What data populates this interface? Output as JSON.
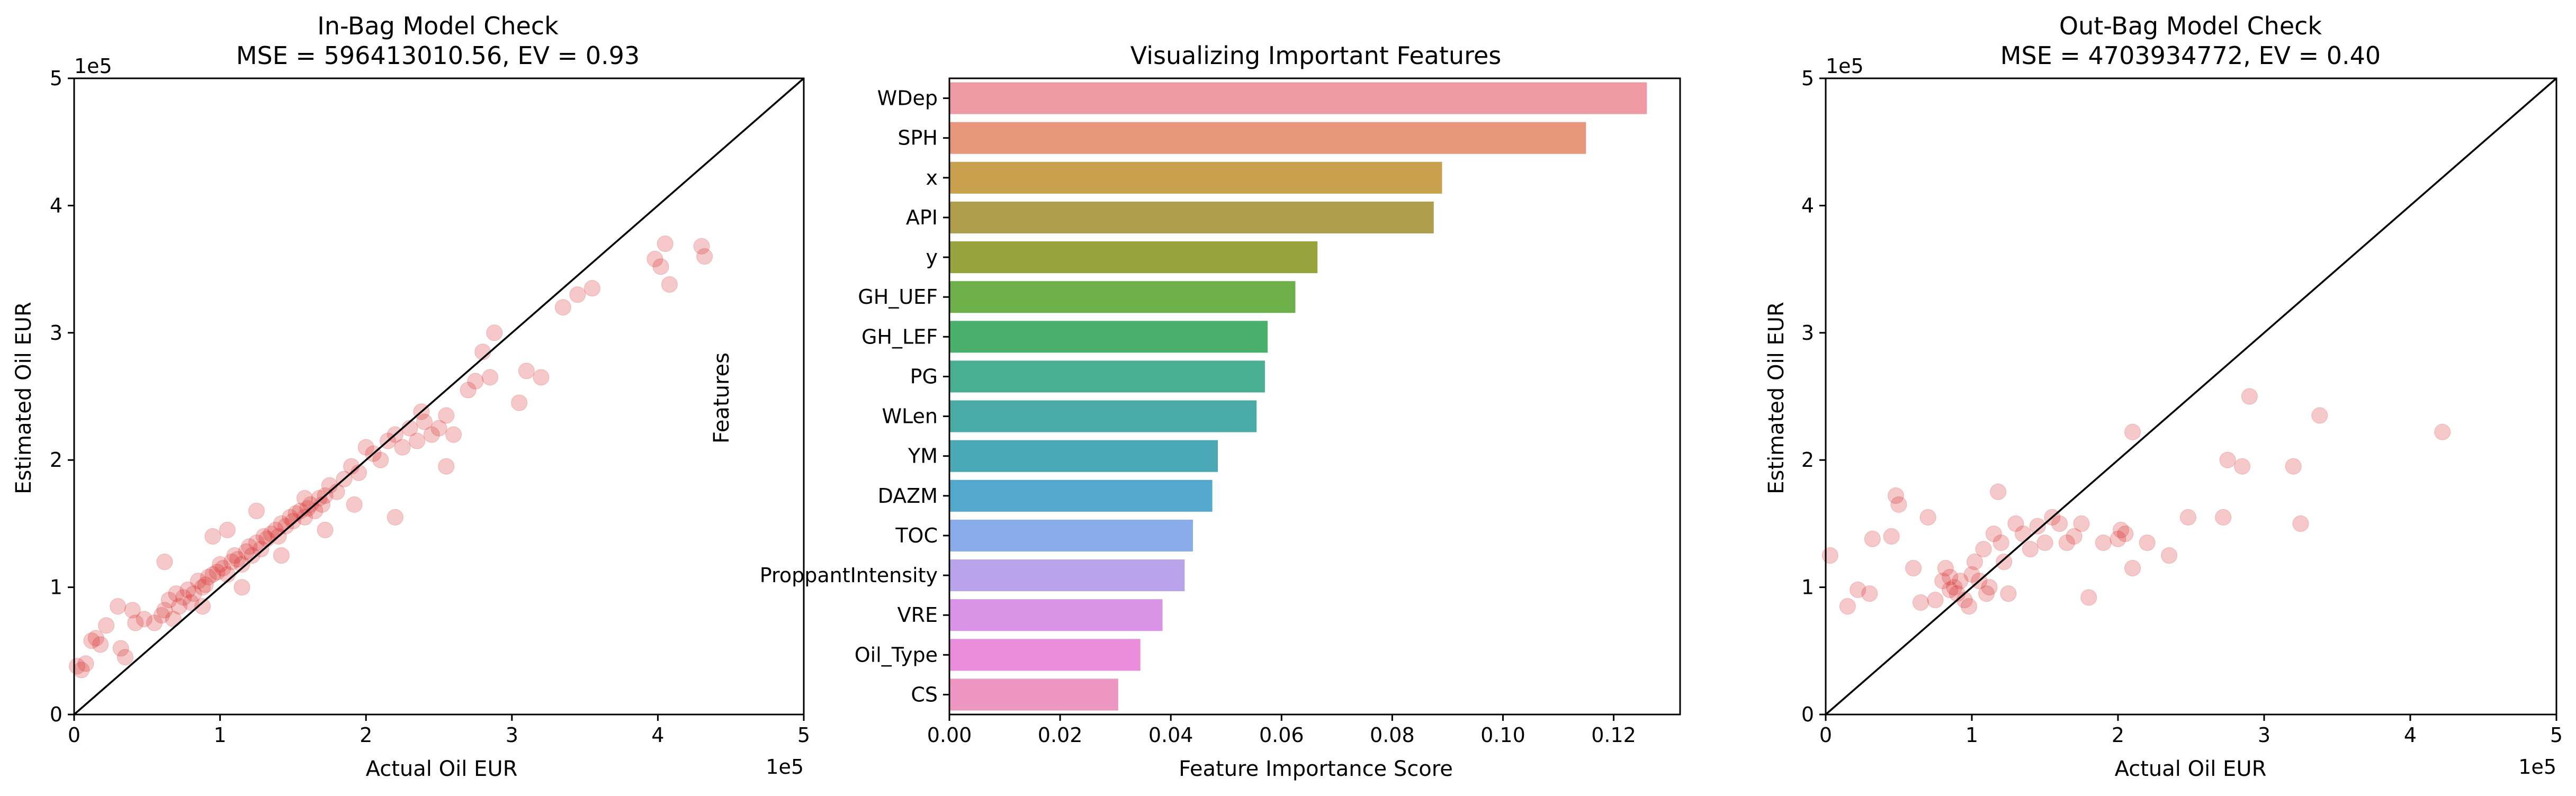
{
  "chart_data": [
    {
      "type": "scatter",
      "title": "In-Bag Model Check",
      "subtitle": "MSE = 596413010.56, EV = 0.93",
      "xlabel": "Actual Oil EUR",
      "ylabel": "Estimated Oil EUR",
      "x_offset_label": "1e5",
      "y_offset_label": "1e5",
      "xlim": [
        0,
        5
      ],
      "ylim": [
        0,
        5
      ],
      "xticks": [
        "0",
        "1",
        "2",
        "3",
        "4",
        "5"
      ],
      "yticks": [
        "0",
        "1",
        "2",
        "3",
        "4",
        "5"
      ],
      "reference_line": "y = x",
      "point_color": "#d62728",
      "x": [
        0.02,
        0.05,
        0.08,
        0.15,
        0.12,
        0.3,
        0.32,
        0.35,
        0.4,
        0.42,
        0.48,
        0.55,
        0.6,
        0.62,
        0.65,
        0.7,
        0.72,
        0.75,
        0.78,
        0.8,
        0.82,
        0.85,
        0.88,
        0.9,
        0.92,
        0.95,
        0.98,
        1.0,
        1.02,
        1.05,
        1.08,
        1.1,
        1.12,
        1.15,
        1.18,
        1.2,
        1.22,
        1.25,
        1.28,
        1.3,
        1.32,
        1.35,
        1.38,
        1.4,
        1.42,
        1.45,
        1.48,
        1.5,
        1.52,
        1.55,
        1.58,
        1.6,
        1.62,
        1.65,
        1.68,
        1.7,
        1.72,
        1.75,
        1.8,
        1.85,
        1.9,
        1.95,
        2.0,
        2.05,
        2.1,
        2.15,
        2.2,
        2.25,
        2.3,
        2.35,
        2.4,
        2.45,
        2.5,
        2.55,
        2.6,
        2.7,
        2.75,
        2.8,
        2.85,
        3.05,
        3.1,
        3.2,
        3.35,
        3.45,
        3.55,
        3.98,
        4.02,
        4.05,
        4.08,
        4.3,
        4.32,
        0.18,
        0.22,
        0.68,
        0.88,
        1.15,
        1.42,
        1.58,
        1.72,
        2.55,
        2.2,
        2.88,
        1.25,
        1.05,
        0.62,
        1.92,
        2.38,
        0.95
      ],
      "y": [
        0.38,
        0.35,
        0.4,
        0.6,
        0.58,
        0.85,
        0.52,
        0.45,
        0.82,
        0.72,
        0.75,
        0.72,
        0.78,
        0.82,
        0.9,
        0.95,
        0.85,
        0.92,
        0.98,
        0.88,
        0.95,
        1.05,
        1.0,
        1.02,
        1.08,
        1.1,
        1.12,
        1.18,
        1.15,
        1.1,
        1.2,
        1.25,
        1.22,
        1.18,
        1.28,
        1.32,
        1.25,
        1.35,
        1.3,
        1.4,
        1.38,
        1.42,
        1.45,
        1.4,
        1.5,
        1.48,
        1.55,
        1.52,
        1.58,
        1.6,
        1.55,
        1.62,
        1.65,
        1.6,
        1.7,
        1.65,
        1.72,
        1.8,
        1.75,
        1.85,
        1.95,
        1.9,
        2.1,
        2.05,
        2.0,
        2.15,
        2.2,
        2.1,
        2.25,
        2.15,
        2.3,
        2.2,
        2.25,
        2.35,
        2.2,
        2.55,
        2.62,
        2.85,
        2.65,
        2.45,
        2.7,
        2.65,
        3.2,
        3.3,
        3.35,
        3.58,
        3.52,
        3.7,
        3.38,
        3.68,
        3.6,
        0.55,
        0.7,
        0.75,
        0.85,
        1.0,
        1.25,
        1.7,
        1.45,
        1.95,
        1.55,
        3.0,
        1.6,
        1.45,
        1.2,
        1.65,
        2.38,
        1.4
      ]
    },
    {
      "type": "bar",
      "orientation": "horizontal",
      "title": "Visualizing Important Features",
      "xlabel": "Feature Importance Score",
      "ylabel": "Features",
      "xlim": [
        0,
        0.132
      ],
      "xticks": [
        "0.00",
        "0.02",
        "0.04",
        "0.06",
        "0.08",
        "0.10",
        "0.12"
      ],
      "categories": [
        "WDep",
        "SPH",
        "x",
        "API",
        "y",
        "GH_UEF",
        "GH_LEF",
        "PG",
        "WLen",
        "YM",
        "DAZM",
        "TOC",
        "ProppantIntensity",
        "VRE",
        "Oil_Type",
        "CS"
      ],
      "values": [
        0.126,
        0.115,
        0.089,
        0.0875,
        0.0665,
        0.0625,
        0.0575,
        0.057,
        0.0555,
        0.0485,
        0.0475,
        0.044,
        0.0425,
        0.0385,
        0.0345,
        0.0305
      ],
      "colors": [
        "#ee9aa4",
        "#e9977c",
        "#c9a04d",
        "#ae9d4b",
        "#97a43e",
        "#6daf49",
        "#49b06c",
        "#4aae93",
        "#4aaaa6",
        "#4ba8b5",
        "#52a9cd",
        "#8bacea",
        "#b9a3ea",
        "#da94e7",
        "#e98cd9",
        "#ee96c2"
      ]
    },
    {
      "type": "scatter",
      "title": "Out-Bag Model Check",
      "subtitle": "MSE = 4703934772, EV = 0.40",
      "xlabel": "Actual Oil EUR",
      "ylabel": "Estimated Oil EUR",
      "x_offset_label": "1e5",
      "y_offset_label": "1e5",
      "xlim": [
        0,
        5
      ],
      "ylim": [
        0,
        5
      ],
      "xticks": [
        "0",
        "1",
        "2",
        "3",
        "4",
        "5"
      ],
      "yticks": [
        "0",
        "1",
        "2",
        "3",
        "4",
        "5"
      ],
      "reference_line": "y = x",
      "point_color": "#d62728",
      "x": [
        0.03,
        0.15,
        0.22,
        0.3,
        0.32,
        0.45,
        0.48,
        0.5,
        0.6,
        0.65,
        0.75,
        0.8,
        0.82,
        0.85,
        0.88,
        0.9,
        0.92,
        0.95,
        0.98,
        1.0,
        1.02,
        1.05,
        1.08,
        1.1,
        1.15,
        1.18,
        1.2,
        1.22,
        1.25,
        1.3,
        1.4,
        1.45,
        1.5,
        1.6,
        1.65,
        1.7,
        1.75,
        1.8,
        1.9,
        2.0,
        2.05,
        2.1,
        2.1,
        2.2,
        2.35,
        2.48,
        2.72,
        2.75,
        2.85,
        2.9,
        3.2,
        3.25,
        3.38,
        4.22,
        0.85,
        1.35,
        1.55,
        2.02,
        1.12,
        0.7
      ],
      "y": [
        1.25,
        0.85,
        0.98,
        0.95,
        1.38,
        1.4,
        1.72,
        1.65,
        1.15,
        0.88,
        0.9,
        1.05,
        1.15,
        1.08,
        1.0,
        0.95,
        1.05,
        0.9,
        0.85,
        1.1,
        1.2,
        1.05,
        1.3,
        0.95,
        1.42,
        1.75,
        1.35,
        1.2,
        0.95,
        1.5,
        1.3,
        1.48,
        1.35,
        1.5,
        1.35,
        1.4,
        1.5,
        0.92,
        1.35,
        1.38,
        1.42,
        1.15,
        2.22,
        1.35,
        1.25,
        1.55,
        1.55,
        2.0,
        1.95,
        2.5,
        1.95,
        1.5,
        2.35,
        2.22,
        0.98,
        1.42,
        1.55,
        1.45,
        1.0,
        1.55
      ]
    }
  ]
}
